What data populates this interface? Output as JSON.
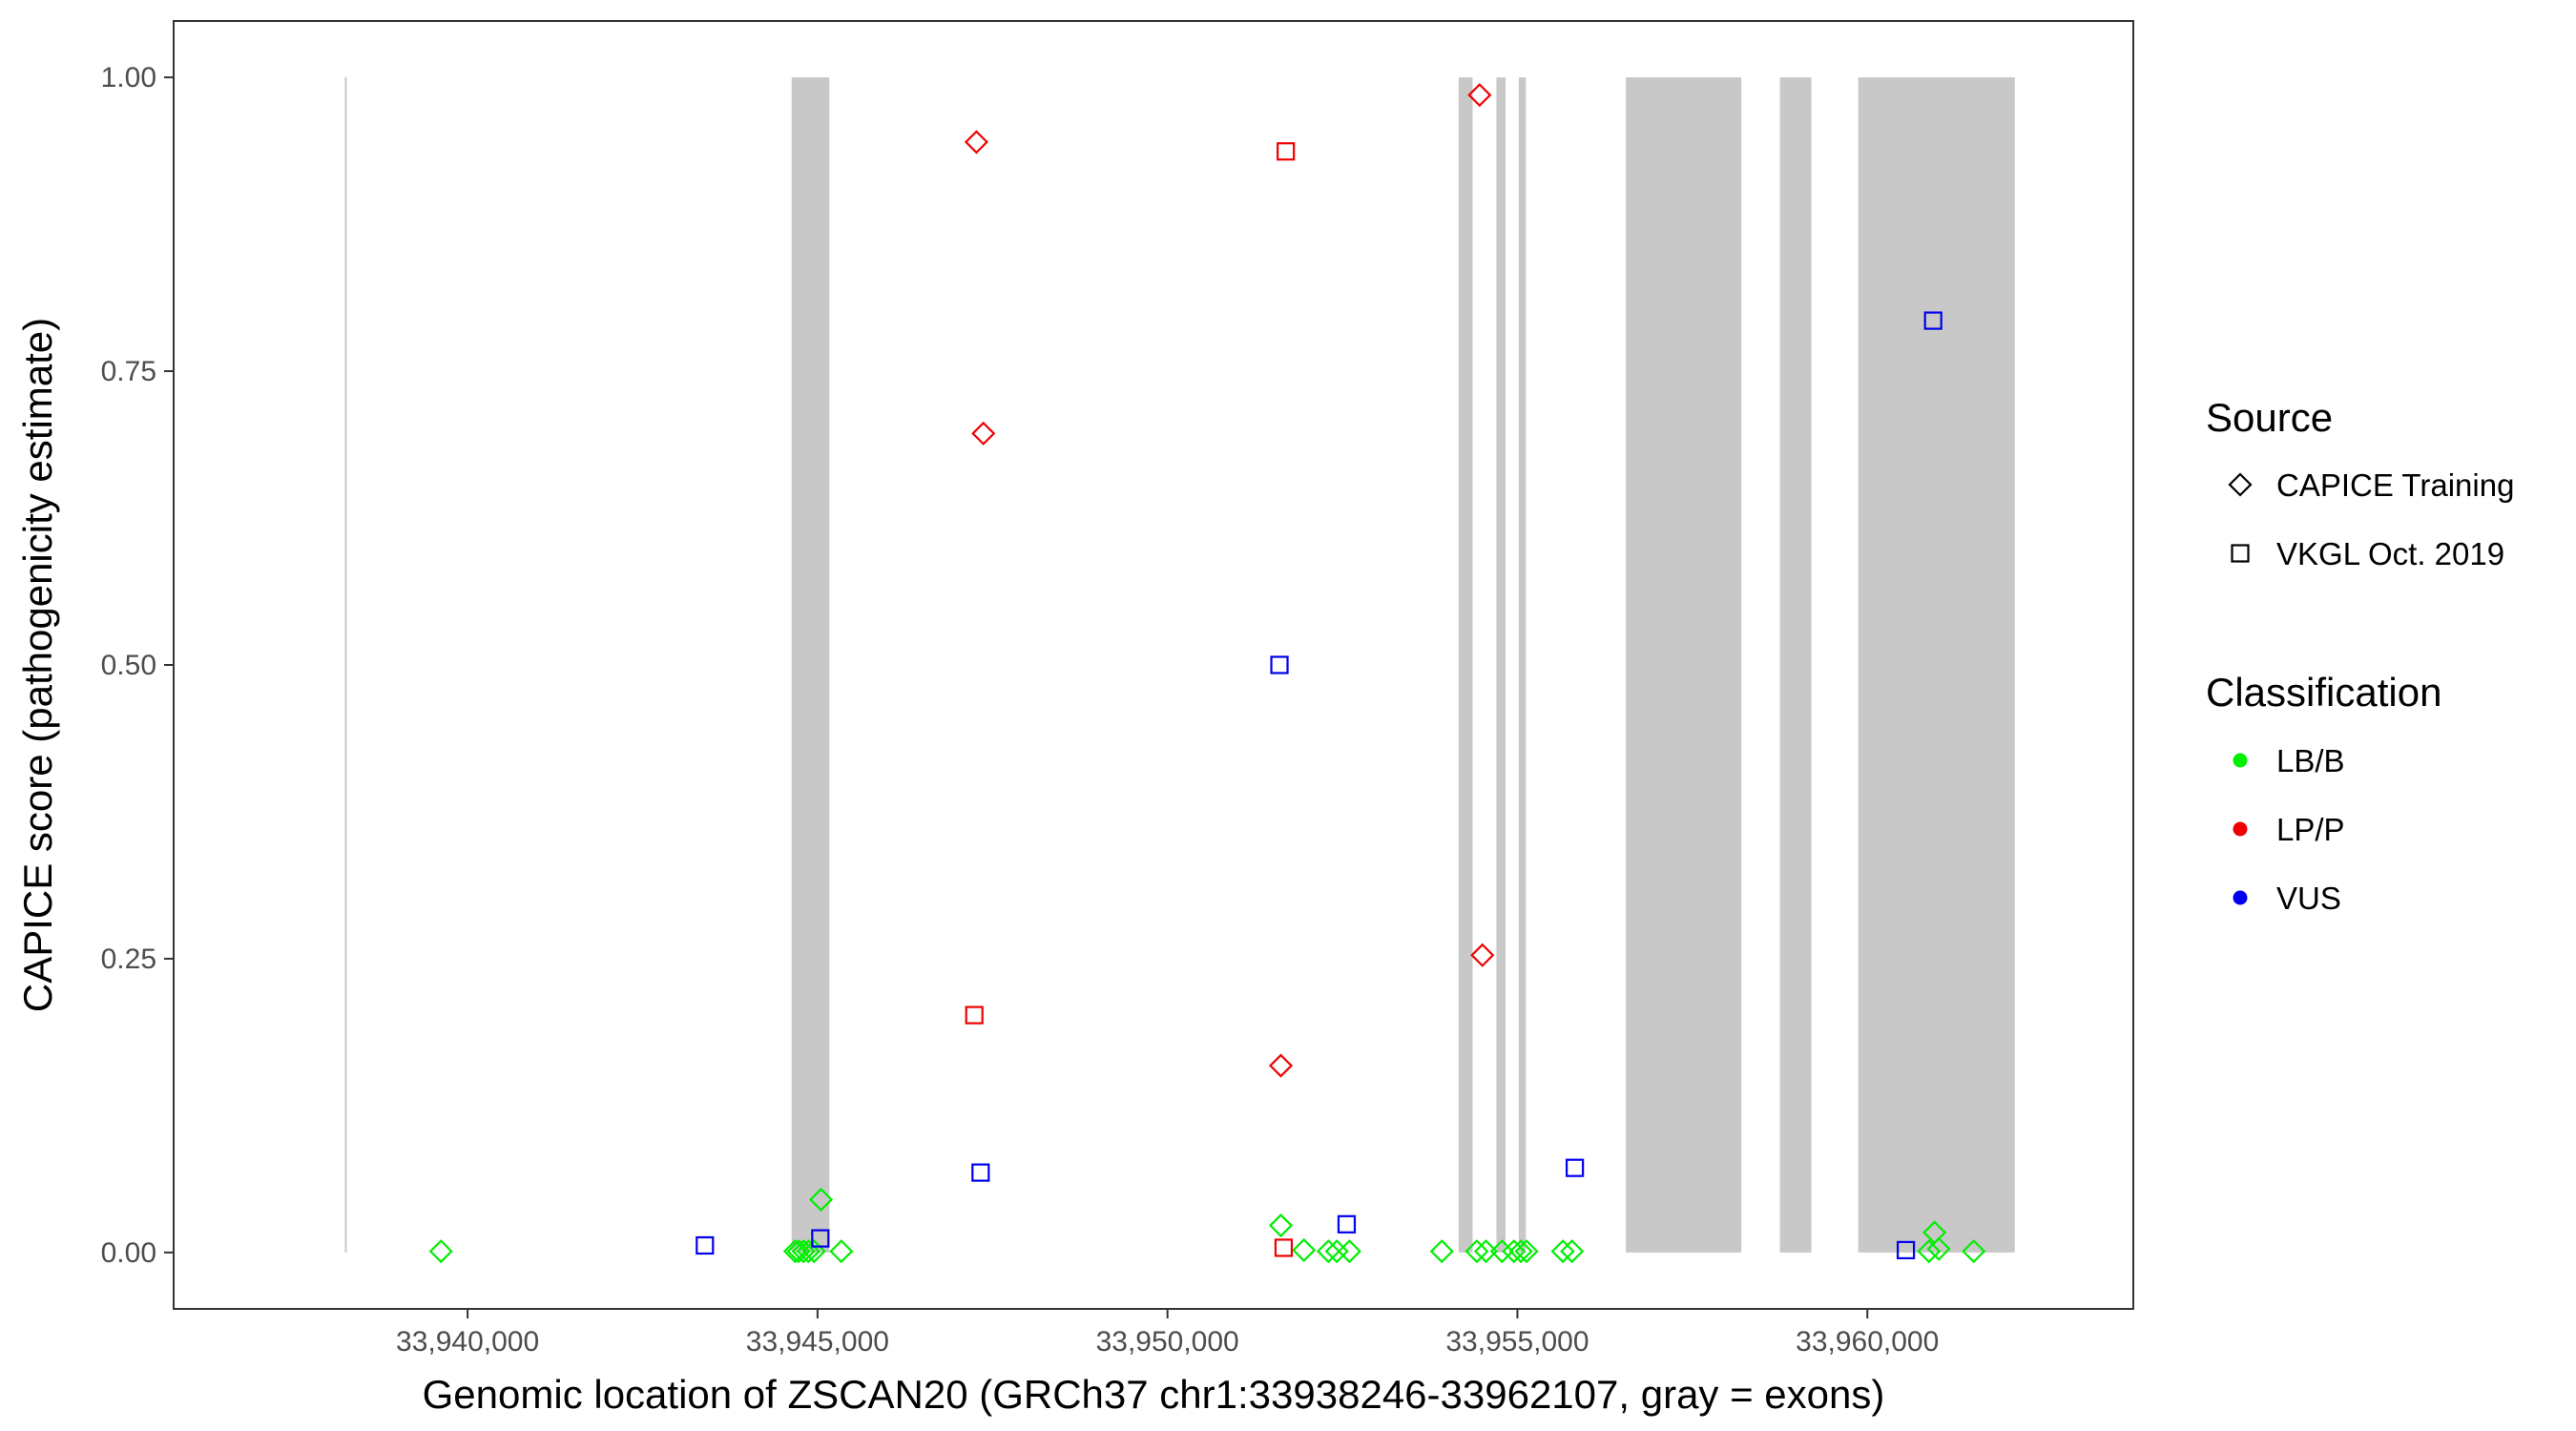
{
  "chart_data": {
    "type": "scatter",
    "xlabel": "Genomic location of ZSCAN20 (GRCh37 chr1:33938246-33962107, gray = exons)",
    "ylabel": "CAPICE score (pathogenicity estimate)",
    "xlim": [
      33935800,
      33963800
    ],
    "ylim": [
      -0.048,
      1.048
    ],
    "x_ticks": [
      33940000,
      33945000,
      33950000,
      33955000,
      33960000
    ],
    "x_tick_labels": [
      "33,940,000",
      "33,945,000",
      "33,950,000",
      "33,955,000",
      "33,960,000"
    ],
    "y_ticks": [
      0,
      0.25,
      0.5,
      0.75,
      1.0
    ],
    "y_tick_labels": [
      "0.00",
      "0.25",
      "0.50",
      "0.75",
      "1.00"
    ],
    "grid": false,
    "exons": [
      {
        "start": 33938246,
        "end": 33938270
      },
      {
        "start": 33944630,
        "end": 33945170
      },
      {
        "start": 33954160,
        "end": 33954360
      },
      {
        "start": 33954700,
        "end": 33954830
      },
      {
        "start": 33955020,
        "end": 33955120
      },
      {
        "start": 33956550,
        "end": 33958200
      },
      {
        "start": 33958750,
        "end": 33959200
      },
      {
        "start": 33959870,
        "end": 33962107
      }
    ],
    "exon_color": "#c8c8c8",
    "legend_source": {
      "title": "Source",
      "entries": [
        {
          "label": "CAPICE Training",
          "shape": "diamond"
        },
        {
          "label": "VKGL Oct. 2019",
          "shape": "square"
        }
      ]
    },
    "legend_classification": {
      "title": "Classification",
      "entries": [
        {
          "label": "LB/B",
          "color": "#00ee00"
        },
        {
          "label": "LP/P",
          "color": "#ee0000"
        },
        {
          "label": "VUS",
          "color": "#0000ee"
        }
      ]
    },
    "legend_position": "right",
    "points": [
      {
        "x": 33939620,
        "y": 0.001,
        "source": "CAPICE Training",
        "class": "LB/B"
      },
      {
        "x": 33944680,
        "y": 0.001,
        "source": "CAPICE Training",
        "class": "LB/B"
      },
      {
        "x": 33944730,
        "y": 0.001,
        "source": "CAPICE Training",
        "class": "LB/B"
      },
      {
        "x": 33944800,
        "y": 0.001,
        "source": "CAPICE Training",
        "class": "LB/B"
      },
      {
        "x": 33944870,
        "y": 0.001,
        "source": "CAPICE Training",
        "class": "LB/B"
      },
      {
        "x": 33944950,
        "y": 0.001,
        "source": "CAPICE Training",
        "class": "LB/B"
      },
      {
        "x": 33945050,
        "y": 0.045,
        "source": "CAPICE Training",
        "class": "LB/B"
      },
      {
        "x": 33945340,
        "y": 0.001,
        "source": "CAPICE Training",
        "class": "LB/B"
      },
      {
        "x": 33951620,
        "y": 0.023,
        "source": "CAPICE Training",
        "class": "LB/B"
      },
      {
        "x": 33951950,
        "y": 0.002,
        "source": "CAPICE Training",
        "class": "LB/B"
      },
      {
        "x": 33952300,
        "y": 0.001,
        "source": "CAPICE Training",
        "class": "LB/B"
      },
      {
        "x": 33952420,
        "y": 0.001,
        "source": "CAPICE Training",
        "class": "LB/B"
      },
      {
        "x": 33952600,
        "y": 0.001,
        "source": "CAPICE Training",
        "class": "LB/B"
      },
      {
        "x": 33953920,
        "y": 0.001,
        "source": "CAPICE Training",
        "class": "LB/B"
      },
      {
        "x": 33954420,
        "y": 0.001,
        "source": "CAPICE Training",
        "class": "LB/B"
      },
      {
        "x": 33954550,
        "y": 0.001,
        "source": "CAPICE Training",
        "class": "LB/B"
      },
      {
        "x": 33954780,
        "y": 0.001,
        "source": "CAPICE Training",
        "class": "LB/B"
      },
      {
        "x": 33954950,
        "y": 0.001,
        "source": "CAPICE Training",
        "class": "LB/B"
      },
      {
        "x": 33955050,
        "y": 0.001,
        "source": "CAPICE Training",
        "class": "LB/B"
      },
      {
        "x": 33955130,
        "y": 0.001,
        "source": "CAPICE Training",
        "class": "LB/B"
      },
      {
        "x": 33955650,
        "y": 0.001,
        "source": "CAPICE Training",
        "class": "LB/B"
      },
      {
        "x": 33955780,
        "y": 0.001,
        "source": "CAPICE Training",
        "class": "LB/B"
      },
      {
        "x": 33960880,
        "y": 0.001,
        "source": "CAPICE Training",
        "class": "LB/B"
      },
      {
        "x": 33960960,
        "y": 0.017,
        "source": "CAPICE Training",
        "class": "LB/B"
      },
      {
        "x": 33961020,
        "y": 0.003,
        "source": "CAPICE Training",
        "class": "LB/B"
      },
      {
        "x": 33961520,
        "y": 0.001,
        "source": "CAPICE Training",
        "class": "LB/B"
      },
      {
        "x": 33947270,
        "y": 0.945,
        "source": "CAPICE Training",
        "class": "LP/P"
      },
      {
        "x": 33947370,
        "y": 0.697,
        "source": "CAPICE Training",
        "class": "LP/P"
      },
      {
        "x": 33951620,
        "y": 0.159,
        "source": "CAPICE Training",
        "class": "LP/P"
      },
      {
        "x": 33954460,
        "y": 0.985,
        "source": "CAPICE Training",
        "class": "LP/P"
      },
      {
        "x": 33954500,
        "y": 0.253,
        "source": "CAPICE Training",
        "class": "LP/P"
      },
      {
        "x": 33951690,
        "y": 0.937,
        "source": "VKGL Oct. 2019",
        "class": "LP/P"
      },
      {
        "x": 33947240,
        "y": 0.202,
        "source": "VKGL Oct. 2019",
        "class": "LP/P"
      },
      {
        "x": 33951660,
        "y": 0.004,
        "source": "VKGL Oct. 2019",
        "class": "LP/P"
      },
      {
        "x": 33943390,
        "y": 0.006,
        "source": "VKGL Oct. 2019",
        "class": "VUS"
      },
      {
        "x": 33945040,
        "y": 0.012,
        "source": "VKGL Oct. 2019",
        "class": "VUS"
      },
      {
        "x": 33947330,
        "y": 0.068,
        "source": "VKGL Oct. 2019",
        "class": "VUS"
      },
      {
        "x": 33951600,
        "y": 0.5,
        "source": "VKGL Oct. 2019",
        "class": "VUS"
      },
      {
        "x": 33952560,
        "y": 0.024,
        "source": "VKGL Oct. 2019",
        "class": "VUS"
      },
      {
        "x": 33955820,
        "y": 0.072,
        "source": "VKGL Oct. 2019",
        "class": "VUS"
      },
      {
        "x": 33960550,
        "y": 0.002,
        "source": "VKGL Oct. 2019",
        "class": "VUS"
      },
      {
        "x": 33960940,
        "y": 0.793,
        "source": "VKGL Oct. 2019",
        "class": "VUS"
      }
    ]
  }
}
